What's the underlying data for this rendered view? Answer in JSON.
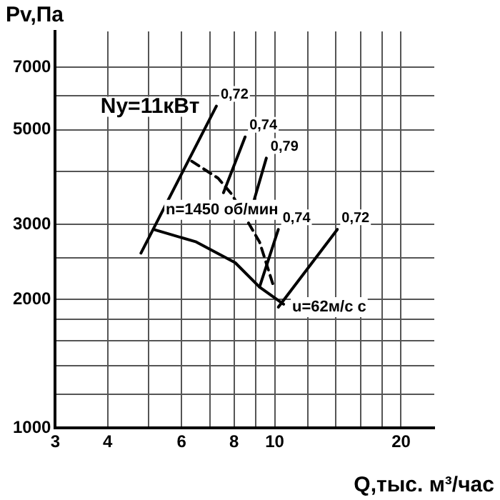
{
  "chart_data": {
    "type": "line",
    "xlabel": "Q,тыс. м³/час",
    "ylabel": "Pv,Па",
    "log": "xy",
    "xlim": [
      3,
      24
    ],
    "ylim": [
      1000,
      8500
    ],
    "xticks": [
      3,
      4,
      {
        "value": 5,
        "label": null
      },
      6,
      {
        "value": 7,
        "label": null
      },
      8,
      {
        "value": 9,
        "label": null
      },
      10,
      {
        "value": 12,
        "label": null
      },
      {
        "value": 14,
        "label": null
      },
      {
        "value": 16,
        "label": null
      },
      {
        "value": 18,
        "label": null
      },
      20
    ],
    "yticks": [
      1000,
      {
        "value": 1200,
        "label": null
      },
      {
        "value": 1400,
        "label": null
      },
      {
        "value": 1600,
        "label": null
      },
      {
        "value": 1800,
        "label": null
      },
      2000,
      {
        "value": 2500,
        "label": null
      },
      3000,
      {
        "value": 4000,
        "label": null
      },
      5000,
      {
        "value": 6000,
        "label": null
      },
      7000
    ],
    "grid": true,
    "legend": false,
    "marker": "none",
    "series": [
      {
        "color": "#000000",
        "x": [
          5.14,
          6.5,
          8.05,
          9.2,
          10.5
        ],
        "values": [
          2920,
          2730,
          2440,
          2140,
          1950
        ]
      },
      {
        "name": "0,72",
        "color": "#000000",
        "x": [
          4.8,
          7.26
        ],
        "values": [
          2570,
          5680
        ]
      },
      {
        "name": "0,74",
        "color": "#000000",
        "x": [
          7.55,
          8.5
        ],
        "values": [
          3560,
          4810
        ]
      },
      {
        "name": "0,79",
        "color": "#000000",
        "x": [
          8.93,
          9.55
        ],
        "values": [
          3420,
          4290
        ]
      },
      {
        "name": "0,74",
        "color": "#000000",
        "x": [
          9.2,
          10.2
        ],
        "values": [
          2140,
          2920
        ]
      },
      {
        "name": "0,72",
        "color": "#000000",
        "x": [
          10.2,
          14.1
        ],
        "values": [
          1920,
          2920
        ]
      },
      {
        "color": "#000000",
        "line_style": "dashed",
        "x": [
          6.34,
          7.33,
          7.9,
          9.2,
          9.95
        ],
        "values": [
          4220,
          3850,
          3530,
          2730,
          2140
        ]
      }
    ],
    "annotations": [
      "Ny=11кВт",
      "n=1450 об/мин",
      {
        "text": "u=62м/с с",
        "x": 10.5,
        "y": 1950
      }
    ]
  }
}
